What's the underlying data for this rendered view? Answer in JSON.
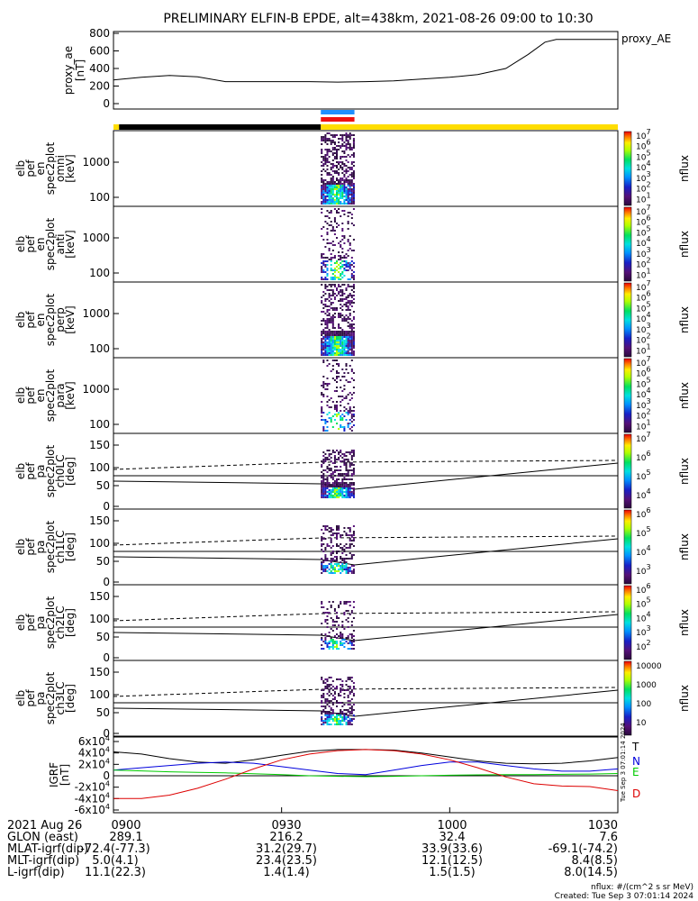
{
  "title": "PRELIMINARY ELFIN-B EPDE, alt=438km, 2021-08-26 09:00 to 10:30",
  "time_range": {
    "start": "09:00",
    "end": "10:30"
  },
  "bars": {
    "top_blue": {
      "start": "09:37",
      "end": "09:43",
      "color": "#1f8fff"
    },
    "top_red": {
      "start": "09:37",
      "end": "09:43",
      "color": "#ee1111"
    },
    "day_night": [
      {
        "start": "09:00",
        "end": "09:01",
        "color": "#ffdd00"
      },
      {
        "start": "09:01",
        "end": "09:37",
        "color": "#000000"
      },
      {
        "start": "09:37",
        "end": "10:30",
        "color": "#ffdd00"
      }
    ]
  },
  "colors": {
    "black": "#000000",
    "blue": "#0000dd",
    "green": "#00cc00",
    "red": "#dd0000",
    "yellow": "#ffdd00"
  },
  "chart_data": [
    {
      "type": "line",
      "name": "proxy_ae",
      "ylabel": "proxy_ae [nT]",
      "legend": "proxy_AE",
      "ylim": [
        0,
        800
      ],
      "yticks": [
        "0",
        "200",
        "400",
        "600",
        "800"
      ],
      "x": [
        "09:00",
        "09:05",
        "09:10",
        "09:15",
        "09:20",
        "09:25",
        "09:30",
        "09:35",
        "09:40",
        "09:45",
        "09:50",
        "09:55",
        "10:00",
        "10:05",
        "10:10",
        "10:14",
        "10:17",
        "10:19",
        "10:22",
        "10:30"
      ],
      "values": [
        270,
        300,
        320,
        305,
        250,
        250,
        250,
        250,
        245,
        250,
        260,
        280,
        300,
        330,
        400,
        560,
        700,
        730,
        730,
        730
      ]
    },
    {
      "type": "heatmap",
      "name": "omni",
      "ylabel_lines": [
        "elb",
        "pef",
        "en",
        "spec2plot",
        "omni",
        "[keV]"
      ],
      "yticks": [
        "1000",
        "100"
      ],
      "colorbar_label": "nflux",
      "colorbar_ticks": [
        "10^7",
        "10^6",
        "10^5",
        "10^4",
        "10^3",
        "10^2",
        "10^1"
      ]
    },
    {
      "type": "heatmap",
      "name": "anti",
      "ylabel_lines": [
        "elb",
        "pef",
        "en",
        "spec2plot",
        "anti",
        "[keV]"
      ],
      "yticks": [
        "1000",
        "100"
      ],
      "colorbar_label": "nflux",
      "colorbar_ticks": [
        "10^7",
        "10^6",
        "10^5",
        "10^4",
        "10^3",
        "10^2",
        "10^1"
      ]
    },
    {
      "type": "heatmap",
      "name": "perp",
      "ylabel_lines": [
        "elb",
        "pef",
        "en",
        "spec2plot",
        "perp",
        "[keV]"
      ],
      "yticks": [
        "1000",
        "100"
      ],
      "colorbar_label": "nflux",
      "colorbar_ticks": [
        "10^7",
        "10^6",
        "10^5",
        "10^4",
        "10^3",
        "10^2",
        "10^1"
      ]
    },
    {
      "type": "heatmap",
      "name": "para",
      "ylabel_lines": [
        "elb",
        "pef",
        "en",
        "spec2plot",
        "para",
        "[keV]"
      ],
      "yticks": [
        "1000",
        "100"
      ],
      "colorbar_label": "nflux",
      "colorbar_ticks": [
        "10^7",
        "10^6",
        "10^5",
        "10^4",
        "10^3",
        "10^2",
        "10^1"
      ]
    },
    {
      "type": "heatmap",
      "name": "ch0LC",
      "ylabel_lines": [
        "elb",
        "pef",
        "pa",
        "spec2plot",
        "ch0LC",
        "[deg]"
      ],
      "yticks": [
        "150",
        "100",
        "50",
        "0"
      ],
      "colorbar_label": "nflux",
      "colorbar_ticks": [
        "10^7",
        "10^6",
        "10^5",
        "10^4"
      ]
    },
    {
      "type": "heatmap",
      "name": "ch1LC",
      "ylabel_lines": [
        "elb",
        "pef",
        "pa",
        "spec2plot",
        "ch1LC",
        "[deg]"
      ],
      "yticks": [
        "150",
        "100",
        "50",
        "0"
      ],
      "colorbar_label": "nflux",
      "colorbar_ticks": [
        "10^6",
        "10^5",
        "10^4",
        "10^3"
      ]
    },
    {
      "type": "heatmap",
      "name": "ch2LC",
      "ylabel_lines": [
        "elb",
        "pef",
        "pa",
        "spec2plot",
        "ch2LC",
        "[deg]"
      ],
      "yticks": [
        "150",
        "100",
        "50",
        "0"
      ],
      "colorbar_label": "nflux",
      "colorbar_ticks": [
        "10^6",
        "10^5",
        "10^4",
        "10^3",
        "10^2"
      ]
    },
    {
      "type": "heatmap",
      "name": "ch3LC",
      "ylabel_lines": [
        "elb",
        "pef",
        "pa",
        "spec2plot",
        "ch3LC",
        "[deg]"
      ],
      "yticks": [
        "150",
        "100",
        "50",
        "0"
      ],
      "colorbar_label": "nflux",
      "colorbar_ticks": [
        "10000",
        "1000",
        "100",
        "10"
      ]
    },
    {
      "type": "line",
      "name": "igrf",
      "ylabel_lines": [
        "IGRF",
        "[nT]"
      ],
      "ylim": [
        -60000,
        60000
      ],
      "yticks": [
        "6x10^4",
        "4x10^4",
        "2x10^4",
        "0",
        "-2x10^4",
        "-4x10^4",
        "-6x10^4"
      ],
      "x": [
        "09:00",
        "09:05",
        "09:10",
        "09:15",
        "09:20",
        "09:25",
        "09:30",
        "09:35",
        "09:40",
        "09:45",
        "09:50",
        "09:55",
        "10:00",
        "10:05",
        "10:10",
        "10:15",
        "10:20",
        "10:25",
        "10:30"
      ],
      "series": [
        {
          "name": "T",
          "color": "#000000",
          "values": [
            42000,
            38000,
            30000,
            24000,
            22000,
            28000,
            36000,
            43000,
            46000,
            46000,
            45000,
            40000,
            33000,
            26000,
            22000,
            21000,
            22000,
            26000,
            32000
          ]
        },
        {
          "name": "N",
          "color": "#0000dd",
          "values": [
            10000,
            14000,
            18000,
            22000,
            24000,
            22000,
            16000,
            10000,
            4000,
            2000,
            10000,
            18000,
            24000,
            24000,
            18000,
            12000,
            8000,
            8000,
            12000
          ]
        },
        {
          "name": "E",
          "color": "#00cc00",
          "values": [
            10000,
            8500,
            7000,
            6000,
            5000,
            3500,
            2000,
            0,
            -1000,
            -1500,
            -1000,
            0,
            1000,
            1500,
            2000,
            2000,
            2500,
            3000,
            4000
          ]
        },
        {
          "name": "D",
          "color": "#dd0000",
          "values": [
            -40000,
            -40000,
            -34000,
            -22000,
            -6000,
            12000,
            28000,
            38000,
            44000,
            46000,
            44000,
            38000,
            28000,
            14000,
            -2000,
            -14000,
            -18000,
            -19000,
            -26000
          ]
        }
      ]
    }
  ],
  "footer": {
    "row_labels": [
      "2021 Aug 26",
      "GLON (east)",
      "MLAT-igrf(dip)",
      "MLT-igrf(dip)",
      "L-igrf(dip)"
    ],
    "columns": [
      {
        "time": "0900",
        "glon": "289.1",
        "mlat": "-72.4(-77.3)",
        "mlt": "5.0(4.1)",
        "l": "11.1(22.3)"
      },
      {
        "time": "0930",
        "glon": "216.2",
        "mlat": "31.2(29.7)",
        "mlt": "23.4(23.5)",
        "l": "1.4(1.4)"
      },
      {
        "time": "1000",
        "glon": "32.4",
        "mlat": "33.9(33.6)",
        "mlt": "12.1(12.5)",
        "l": "1.5(1.5)"
      },
      {
        "time": "1030",
        "glon": "7.6",
        "mlat": "-69.1(-74.2)",
        "mlt": "8.4(8.5)",
        "l": "8.0(14.5)"
      }
    ],
    "nflux_units": "nflux: #/(cm^2 s sr MeV)",
    "created": "Created: Tue Sep  3 07:01:14 2024",
    "side_stamp": "Tue Sep  3 07:01:14 2024"
  }
}
